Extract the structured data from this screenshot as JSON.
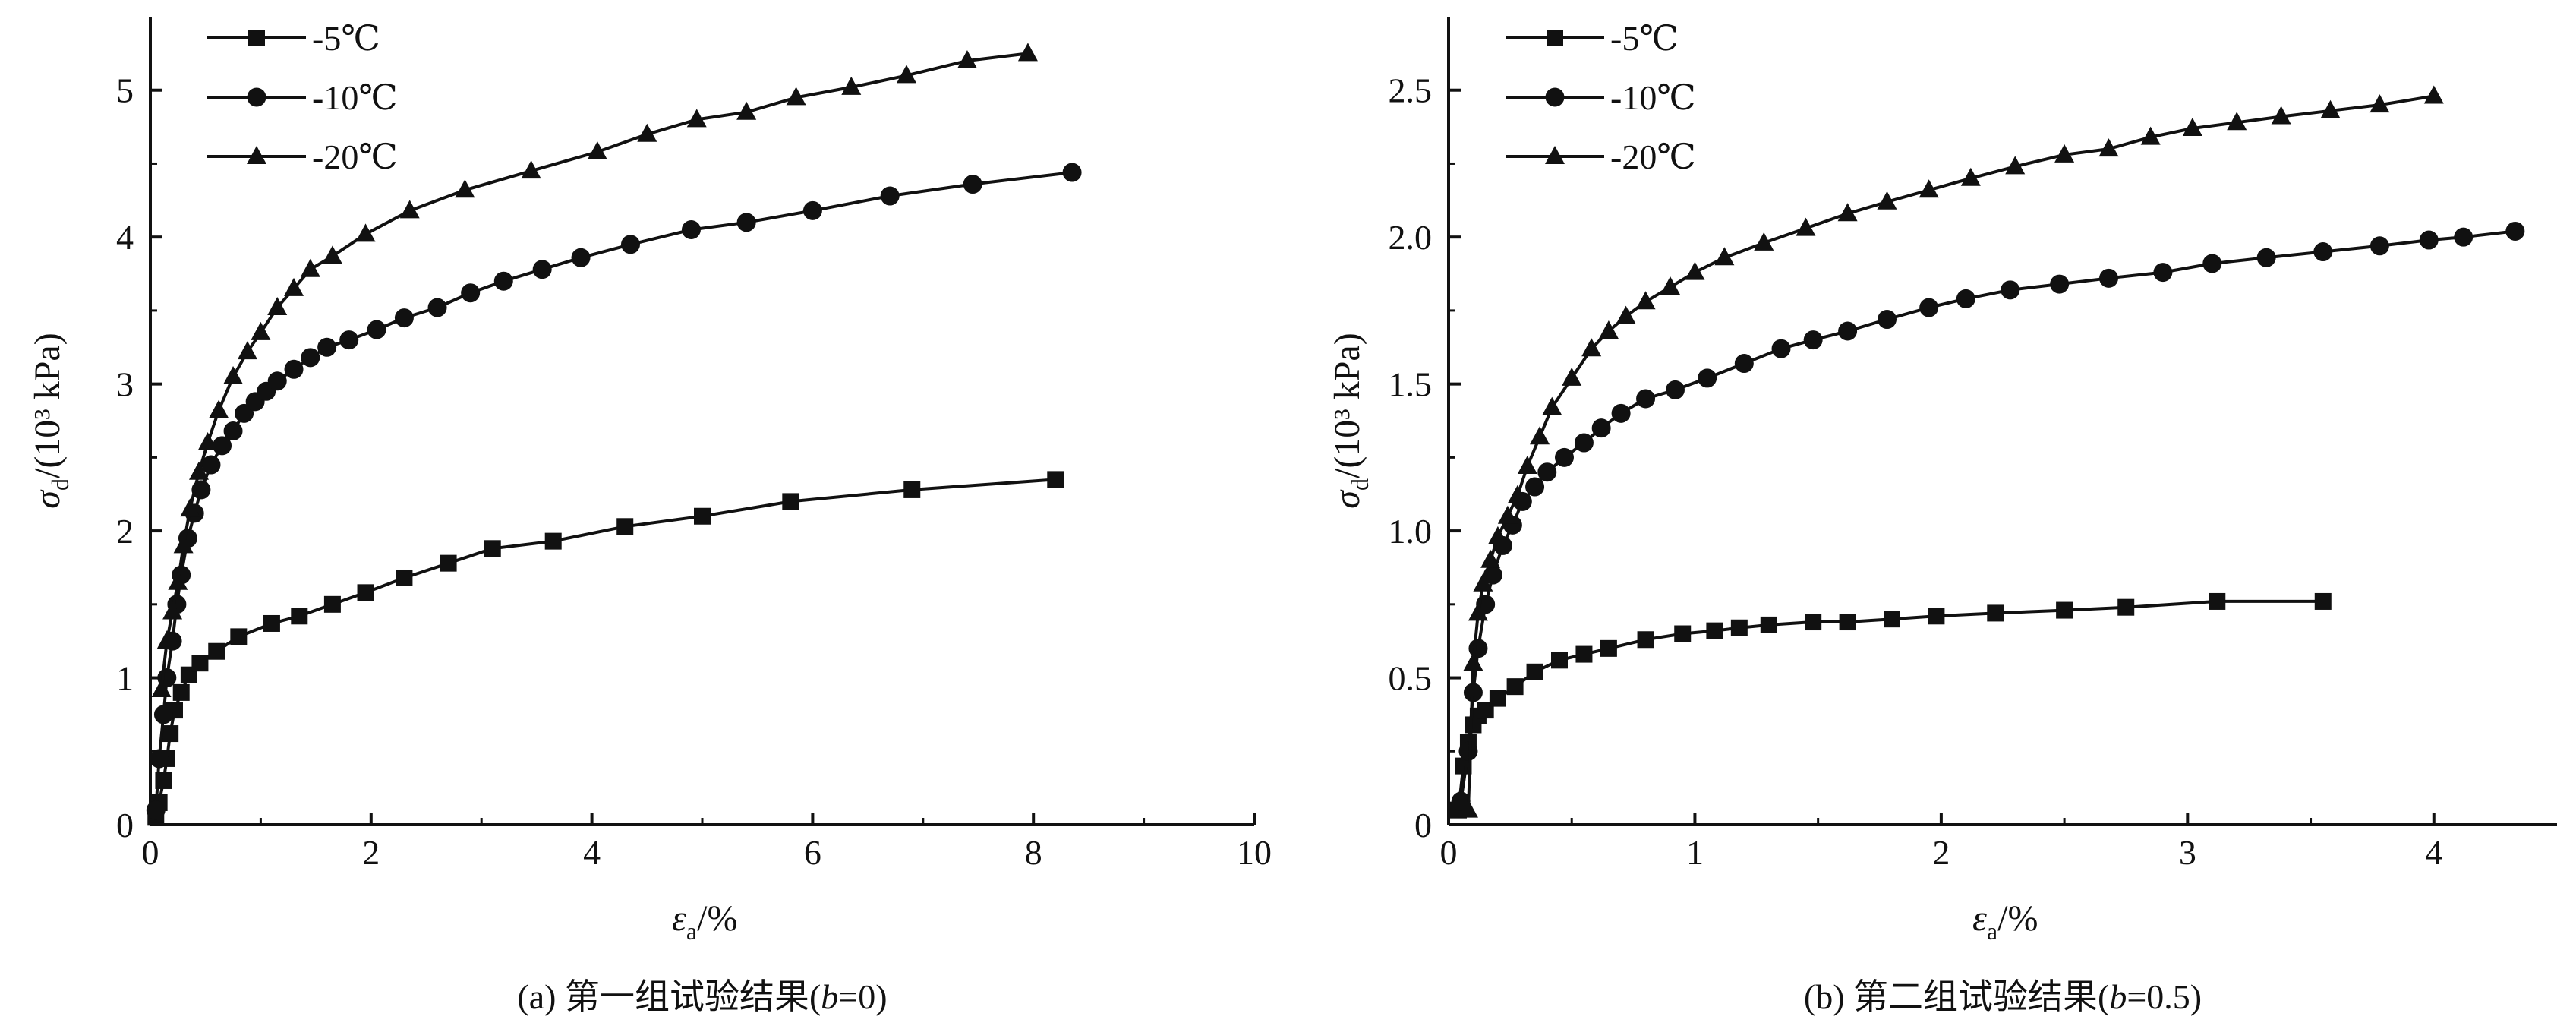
{
  "chart_data": [
    {
      "type": "line",
      "caption": "(a) 第一组试验结果(b=0)",
      "xlabel": "εa/%",
      "ylabel": "σd/(10³ kPa)",
      "xlim": [
        0,
        10
      ],
      "ylim": [
        0,
        5.5
      ],
      "xticks": [
        0,
        2,
        4,
        6,
        8,
        10
      ],
      "yticks": [
        0,
        1,
        2,
        3,
        4,
        5
      ],
      "grid": false,
      "legend": "top-left",
      "series": [
        {
          "name": "-5℃",
          "marker": "square",
          "x": [
            0.05,
            0.08,
            0.12,
            0.15,
            0.18,
            0.22,
            0.28,
            0.35,
            0.45,
            0.6,
            0.8,
            1.1,
            1.35,
            1.65,
            1.95,
            2.3,
            2.7,
            3.1,
            3.65,
            4.3,
            5.0,
            5.8,
            6.9,
            8.2
          ],
          "y": [
            0.05,
            0.15,
            0.3,
            0.45,
            0.62,
            0.78,
            0.9,
            1.02,
            1.1,
            1.18,
            1.28,
            1.37,
            1.42,
            1.5,
            1.58,
            1.68,
            1.78,
            1.88,
            1.93,
            2.03,
            2.1,
            2.2,
            2.28,
            2.35
          ]
        },
        {
          "name": "-10℃",
          "marker": "circle",
          "x": [
            0.05,
            0.08,
            0.12,
            0.15,
            0.2,
            0.24,
            0.28,
            0.34,
            0.4,
            0.46,
            0.55,
            0.65,
            0.75,
            0.85,
            0.95,
            1.05,
            1.15,
            1.3,
            1.45,
            1.6,
            1.8,
            2.05,
            2.3,
            2.6,
            2.9,
            3.2,
            3.55,
            3.9,
            4.35,
            4.9,
            5.4,
            6.0,
            6.7,
            7.45,
            8.35
          ],
          "y": [
            0.1,
            0.45,
            0.75,
            1.0,
            1.25,
            1.5,
            1.7,
            1.95,
            2.12,
            2.28,
            2.45,
            2.58,
            2.68,
            2.8,
            2.88,
            2.95,
            3.02,
            3.1,
            3.18,
            3.25,
            3.3,
            3.37,
            3.45,
            3.52,
            3.62,
            3.7,
            3.78,
            3.86,
            3.95,
            4.05,
            4.1,
            4.18,
            4.28,
            4.36,
            4.44
          ]
        },
        {
          "name": "-20℃",
          "marker": "triangle",
          "x": [
            0.1,
            0.15,
            0.2,
            0.25,
            0.3,
            0.36,
            0.44,
            0.52,
            0.62,
            0.75,
            0.88,
            1.0,
            1.15,
            1.3,
            1.45,
            1.65,
            1.95,
            2.35,
            2.85,
            3.45,
            4.05,
            4.5,
            4.95,
            5.4,
            5.85,
            6.35,
            6.85,
            7.4,
            7.95
          ],
          "y": [
            0.92,
            1.25,
            1.45,
            1.65,
            1.9,
            2.15,
            2.4,
            2.6,
            2.82,
            3.05,
            3.22,
            3.35,
            3.52,
            3.65,
            3.78,
            3.87,
            4.02,
            4.18,
            4.32,
            4.45,
            4.58,
            4.7,
            4.8,
            4.85,
            4.95,
            5.02,
            5.1,
            5.2,
            5.25
          ]
        }
      ]
    },
    {
      "type": "line",
      "caption": "(b) 第二组试验结果(b=0.5)",
      "xlabel": "εa/%",
      "ylabel": "σd/(10³ kPa)",
      "xlim": [
        0,
        4.5
      ],
      "ylim": [
        0,
        2.75
      ],
      "xticks": [
        0,
        1,
        2,
        3,
        4
      ],
      "yticks": [
        0,
        0.5,
        1.0,
        1.5,
        2.0,
        2.5
      ],
      "ytick_labels": [
        "0",
        "0.5",
        "1.0",
        "1.5",
        "2.0",
        "2.5"
      ],
      "grid": false,
      "legend": "top-left",
      "series": [
        {
          "name": "-5℃",
          "marker": "square",
          "x": [
            0.04,
            0.06,
            0.08,
            0.1,
            0.12,
            0.15,
            0.2,
            0.27,
            0.35,
            0.45,
            0.55,
            0.65,
            0.8,
            0.95,
            1.08,
            1.18,
            1.3,
            1.48,
            1.62,
            1.8,
            1.98,
            2.22,
            2.5,
            2.75,
            3.12,
            3.55
          ],
          "y": [
            0.05,
            0.2,
            0.28,
            0.34,
            0.37,
            0.39,
            0.43,
            0.47,
            0.52,
            0.56,
            0.58,
            0.6,
            0.63,
            0.65,
            0.66,
            0.67,
            0.68,
            0.69,
            0.69,
            0.7,
            0.71,
            0.72,
            0.73,
            0.74,
            0.76,
            0.76
          ]
        },
        {
          "name": "-10℃",
          "marker": "circle",
          "x": [
            0.05,
            0.08,
            0.1,
            0.12,
            0.15,
            0.18,
            0.22,
            0.26,
            0.3,
            0.35,
            0.4,
            0.47,
            0.55,
            0.62,
            0.7,
            0.8,
            0.92,
            1.05,
            1.2,
            1.35,
            1.48,
            1.62,
            1.78,
            1.95,
            2.1,
            2.28,
            2.48,
            2.68,
            2.9,
            3.1,
            3.32,
            3.55,
            3.78,
            3.98,
            4.12,
            4.33
          ],
          "y": [
            0.08,
            0.25,
            0.45,
            0.6,
            0.75,
            0.85,
            0.95,
            1.02,
            1.1,
            1.15,
            1.2,
            1.25,
            1.3,
            1.35,
            1.4,
            1.45,
            1.48,
            1.52,
            1.57,
            1.62,
            1.65,
            1.68,
            1.72,
            1.76,
            1.79,
            1.82,
            1.84,
            1.86,
            1.88,
            1.91,
            1.93,
            1.95,
            1.97,
            1.99,
            2.0,
            2.02
          ]
        },
        {
          "name": "-20℃",
          "marker": "triangle",
          "x": [
            0.08,
            0.1,
            0.12,
            0.14,
            0.17,
            0.2,
            0.24,
            0.28,
            0.32,
            0.37,
            0.42,
            0.5,
            0.58,
            0.65,
            0.72,
            0.8,
            0.9,
            1.0,
            1.12,
            1.28,
            1.45,
            1.62,
            1.78,
            1.95,
            2.12,
            2.3,
            2.5,
            2.68,
            2.85,
            3.02,
            3.2,
            3.38,
            3.58,
            3.78,
            4.0
          ],
          "y": [
            0.05,
            0.55,
            0.72,
            0.82,
            0.9,
            0.98,
            1.05,
            1.12,
            1.22,
            1.32,
            1.42,
            1.52,
            1.62,
            1.68,
            1.73,
            1.78,
            1.83,
            1.88,
            1.93,
            1.98,
            2.03,
            2.08,
            2.12,
            2.16,
            2.2,
            2.24,
            2.28,
            2.3,
            2.34,
            2.37,
            2.39,
            2.41,
            2.43,
            2.45,
            2.48
          ]
        }
      ]
    }
  ]
}
